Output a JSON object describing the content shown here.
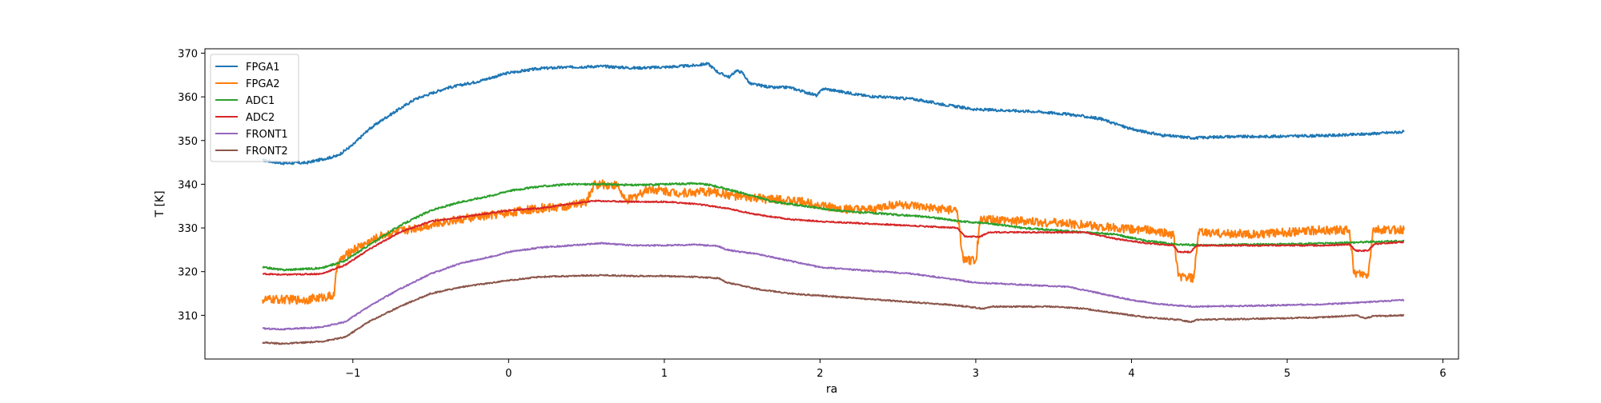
{
  "chart_data": {
    "type": "line",
    "title": "",
    "xlabel": "ra",
    "ylabel": "T [K]",
    "xlim": [
      -1.95,
      6.1
    ],
    "ylim": [
      300,
      371
    ],
    "xticks": [
      -1,
      0,
      1,
      2,
      3,
      4,
      5,
      6
    ],
    "xtick_labels": [
      "−1",
      "0",
      "1",
      "2",
      "3",
      "4",
      "5",
      "6"
    ],
    "yticks": [
      310,
      320,
      330,
      340,
      350,
      360,
      370
    ],
    "ytick_labels": [
      "310",
      "320",
      "330",
      "340",
      "350",
      "360",
      "370"
    ],
    "grid": false,
    "legend_position": "top-left",
    "series": [
      {
        "name": "FPGA1",
        "color": "#1f77b4",
        "noise": 0.3,
        "points": [
          [
            -1.58,
            345.5
          ],
          [
            -1.45,
            344.8
          ],
          [
            -1.3,
            344.9
          ],
          [
            -1.1,
            346.5
          ],
          [
            -1.0,
            349.0
          ],
          [
            -0.9,
            352.5
          ],
          [
            -0.8,
            355.0
          ],
          [
            -0.6,
            359.5
          ],
          [
            -0.4,
            362.0
          ],
          [
            -0.2,
            363.5
          ],
          [
            0.0,
            365.5
          ],
          [
            0.2,
            366.5
          ],
          [
            0.4,
            366.8
          ],
          [
            0.6,
            367.0
          ],
          [
            0.8,
            366.6
          ],
          [
            1.0,
            366.8
          ],
          [
            1.2,
            367.2
          ],
          [
            1.28,
            367.6
          ],
          [
            1.35,
            365.5
          ],
          [
            1.42,
            364.5
          ],
          [
            1.46,
            366.0
          ],
          [
            1.5,
            365.6
          ],
          [
            1.55,
            363.0
          ],
          [
            1.7,
            362.1
          ],
          [
            1.8,
            362.2
          ],
          [
            1.98,
            360.3
          ],
          [
            2.02,
            361.9
          ],
          [
            2.3,
            360.2
          ],
          [
            2.6,
            359.5
          ],
          [
            2.8,
            358.2
          ],
          [
            3.0,
            357.1
          ],
          [
            3.2,
            356.9
          ],
          [
            3.4,
            356.6
          ],
          [
            3.6,
            356.0
          ],
          [
            3.8,
            355.0
          ],
          [
            4.0,
            352.6
          ],
          [
            4.2,
            351.2
          ],
          [
            4.4,
            350.6
          ],
          [
            4.6,
            350.9
          ],
          [
            4.8,
            350.9
          ],
          [
            5.0,
            351.0
          ],
          [
            5.2,
            351.1
          ],
          [
            5.4,
            351.3
          ],
          [
            5.6,
            351.7
          ],
          [
            5.75,
            352.0
          ]
        ]
      },
      {
        "name": "FPGA2",
        "color": "#ff7f0e",
        "noise": 1.0,
        "points": [
          [
            -1.58,
            313.6
          ],
          [
            -1.3,
            313.6
          ],
          [
            -1.12,
            314.5
          ],
          [
            -1.1,
            322.0
          ],
          [
            -1.0,
            325.0
          ],
          [
            -0.8,
            328.5
          ],
          [
            -0.6,
            330.0
          ],
          [
            -0.4,
            331.5
          ],
          [
            -0.2,
            332.5
          ],
          [
            0.0,
            333.5
          ],
          [
            0.2,
            334.5
          ],
          [
            0.4,
            335.0
          ],
          [
            0.5,
            336.0
          ],
          [
            0.55,
            340.0
          ],
          [
            0.7,
            339.8
          ],
          [
            0.75,
            336.0
          ],
          [
            0.9,
            339.0
          ],
          [
            1.1,
            338.0
          ],
          [
            1.3,
            338.3
          ],
          [
            1.5,
            337.0
          ],
          [
            1.7,
            336.5
          ],
          [
            1.9,
            336.0
          ],
          [
            2.1,
            334.5
          ],
          [
            2.3,
            334.0
          ],
          [
            2.5,
            335.5
          ],
          [
            2.7,
            334.5
          ],
          [
            2.88,
            334.0
          ],
          [
            2.92,
            322.5
          ],
          [
            3.0,
            322.5
          ],
          [
            3.03,
            332.0
          ],
          [
            3.3,
            331.5
          ],
          [
            3.6,
            331.0
          ],
          [
            3.9,
            330.0
          ],
          [
            4.1,
            329.5
          ],
          [
            4.27,
            328.5
          ],
          [
            4.3,
            319.0
          ],
          [
            4.4,
            318.5
          ],
          [
            4.43,
            329.0
          ],
          [
            4.8,
            328.5
          ],
          [
            5.2,
            329.5
          ],
          [
            5.4,
            329.5
          ],
          [
            5.43,
            319.5
          ],
          [
            5.52,
            319.0
          ],
          [
            5.55,
            329.5
          ],
          [
            5.75,
            329.5
          ]
        ]
      },
      {
        "name": "ADC1",
        "color": "#2ca02c",
        "noise": 0.2,
        "points": [
          [
            -1.58,
            321.0
          ],
          [
            -1.45,
            320.4
          ],
          [
            -1.2,
            320.8
          ],
          [
            -1.05,
            322.5
          ],
          [
            -0.9,
            326.0
          ],
          [
            -0.7,
            330.5
          ],
          [
            -0.5,
            334.0
          ],
          [
            -0.3,
            336.0
          ],
          [
            -0.1,
            337.5
          ],
          [
            0.0,
            338.5
          ],
          [
            0.2,
            339.5
          ],
          [
            0.4,
            340.0
          ],
          [
            0.6,
            340.0
          ],
          [
            0.8,
            339.8
          ],
          [
            1.0,
            340.0
          ],
          [
            1.2,
            340.2
          ],
          [
            1.3,
            339.8
          ],
          [
            1.5,
            338.0
          ],
          [
            1.7,
            336.0
          ],
          [
            1.9,
            335.0
          ],
          [
            2.1,
            334.0
          ],
          [
            2.3,
            333.5
          ],
          [
            2.5,
            333.0
          ],
          [
            2.7,
            332.5
          ],
          [
            2.9,
            331.5
          ],
          [
            3.1,
            331.0
          ],
          [
            3.3,
            330.0
          ],
          [
            3.5,
            329.5
          ],
          [
            3.7,
            329.0
          ],
          [
            3.9,
            328.5
          ],
          [
            4.1,
            327.0
          ],
          [
            4.3,
            326.2
          ],
          [
            4.5,
            326.0
          ],
          [
            4.7,
            326.2
          ],
          [
            5.0,
            326.3
          ],
          [
            5.3,
            326.5
          ],
          [
            5.5,
            326.8
          ],
          [
            5.75,
            327.0
          ]
        ]
      },
      {
        "name": "ADC2",
        "color": "#d62728",
        "noise": 0.15,
        "points": [
          [
            -1.58,
            319.5
          ],
          [
            -1.45,
            319.3
          ],
          [
            -1.2,
            319.5
          ],
          [
            -1.05,
            321.5
          ],
          [
            -0.9,
            325.0
          ],
          [
            -0.7,
            329.0
          ],
          [
            -0.5,
            331.5
          ],
          [
            -0.3,
            332.5
          ],
          [
            -0.1,
            333.5
          ],
          [
            0.0,
            334.0
          ],
          [
            0.2,
            334.5
          ],
          [
            0.4,
            335.5
          ],
          [
            0.55,
            336.2
          ],
          [
            0.8,
            336.0
          ],
          [
            1.0,
            336.0
          ],
          [
            1.2,
            335.5
          ],
          [
            1.4,
            334.5
          ],
          [
            1.6,
            333.0
          ],
          [
            1.8,
            332.0
          ],
          [
            2.0,
            331.5
          ],
          [
            2.3,
            331.0
          ],
          [
            2.6,
            330.5
          ],
          [
            2.88,
            330.0
          ],
          [
            2.93,
            328.0
          ],
          [
            3.03,
            328.0
          ],
          [
            3.08,
            329.0
          ],
          [
            3.5,
            329.0
          ],
          [
            3.7,
            329.0
          ],
          [
            3.9,
            327.5
          ],
          [
            4.1,
            326.5
          ],
          [
            4.27,
            326.0
          ],
          [
            4.3,
            324.5
          ],
          [
            4.38,
            324.5
          ],
          [
            4.42,
            326.0
          ],
          [
            4.8,
            326.0
          ],
          [
            5.2,
            326.0
          ],
          [
            5.4,
            326.2
          ],
          [
            5.44,
            324.8
          ],
          [
            5.52,
            324.8
          ],
          [
            5.56,
            326.3
          ],
          [
            5.75,
            326.8
          ]
        ]
      },
      {
        "name": "FRONT1",
        "color": "#9467bd",
        "noise": 0.15,
        "points": [
          [
            -1.58,
            307.0
          ],
          [
            -1.45,
            306.8
          ],
          [
            -1.2,
            307.3
          ],
          [
            -1.05,
            308.5
          ],
          [
            -0.9,
            312.0
          ],
          [
            -0.7,
            316.0
          ],
          [
            -0.5,
            319.5
          ],
          [
            -0.3,
            322.0
          ],
          [
            -0.1,
            323.5
          ],
          [
            0.0,
            324.5
          ],
          [
            0.2,
            325.5
          ],
          [
            0.4,
            326.0
          ],
          [
            0.6,
            326.5
          ],
          [
            0.8,
            326.0
          ],
          [
            1.0,
            326.0
          ],
          [
            1.2,
            326.2
          ],
          [
            1.35,
            325.8
          ],
          [
            1.4,
            325.0
          ],
          [
            1.6,
            324.0
          ],
          [
            1.8,
            322.5
          ],
          [
            2.0,
            321.0
          ],
          [
            2.2,
            320.5
          ],
          [
            2.4,
            320.0
          ],
          [
            2.6,
            319.5
          ],
          [
            2.8,
            318.5
          ],
          [
            3.0,
            317.5
          ],
          [
            3.3,
            317.0
          ],
          [
            3.6,
            316.5
          ],
          [
            3.8,
            315.0
          ],
          [
            4.0,
            313.5
          ],
          [
            4.2,
            312.5
          ],
          [
            4.4,
            312.0
          ],
          [
            4.8,
            312.2
          ],
          [
            5.2,
            312.5
          ],
          [
            5.5,
            313.0
          ],
          [
            5.75,
            313.5
          ]
        ]
      },
      {
        "name": "FRONT2",
        "color": "#8c564b",
        "noise": 0.15,
        "points": [
          [
            -1.58,
            303.8
          ],
          [
            -1.45,
            303.5
          ],
          [
            -1.2,
            304.0
          ],
          [
            -1.05,
            305.0
          ],
          [
            -0.9,
            308.5
          ],
          [
            -0.7,
            312.0
          ],
          [
            -0.5,
            315.0
          ],
          [
            -0.3,
            316.5
          ],
          [
            -0.1,
            317.5
          ],
          [
            0.0,
            318.0
          ],
          [
            0.2,
            318.8
          ],
          [
            0.4,
            319.0
          ],
          [
            0.6,
            319.2
          ],
          [
            0.8,
            319.0
          ],
          [
            1.0,
            319.0
          ],
          [
            1.2,
            318.8
          ],
          [
            1.35,
            318.5
          ],
          [
            1.4,
            317.5
          ],
          [
            1.6,
            316.0
          ],
          [
            1.8,
            315.0
          ],
          [
            2.0,
            314.5
          ],
          [
            2.2,
            314.0
          ],
          [
            2.4,
            313.5
          ],
          [
            2.6,
            313.0
          ],
          [
            2.8,
            312.5
          ],
          [
            2.95,
            312.0
          ],
          [
            3.05,
            311.5
          ],
          [
            3.1,
            312.0
          ],
          [
            3.5,
            312.0
          ],
          [
            3.7,
            311.5
          ],
          [
            3.9,
            310.5
          ],
          [
            4.1,
            309.5
          ],
          [
            4.3,
            309.0
          ],
          [
            4.38,
            308.5
          ],
          [
            4.42,
            309.0
          ],
          [
            4.8,
            309.2
          ],
          [
            5.2,
            309.5
          ],
          [
            5.45,
            310.0
          ],
          [
            5.5,
            309.3
          ],
          [
            5.55,
            309.8
          ],
          [
            5.75,
            310.0
          ]
        ]
      }
    ]
  }
}
